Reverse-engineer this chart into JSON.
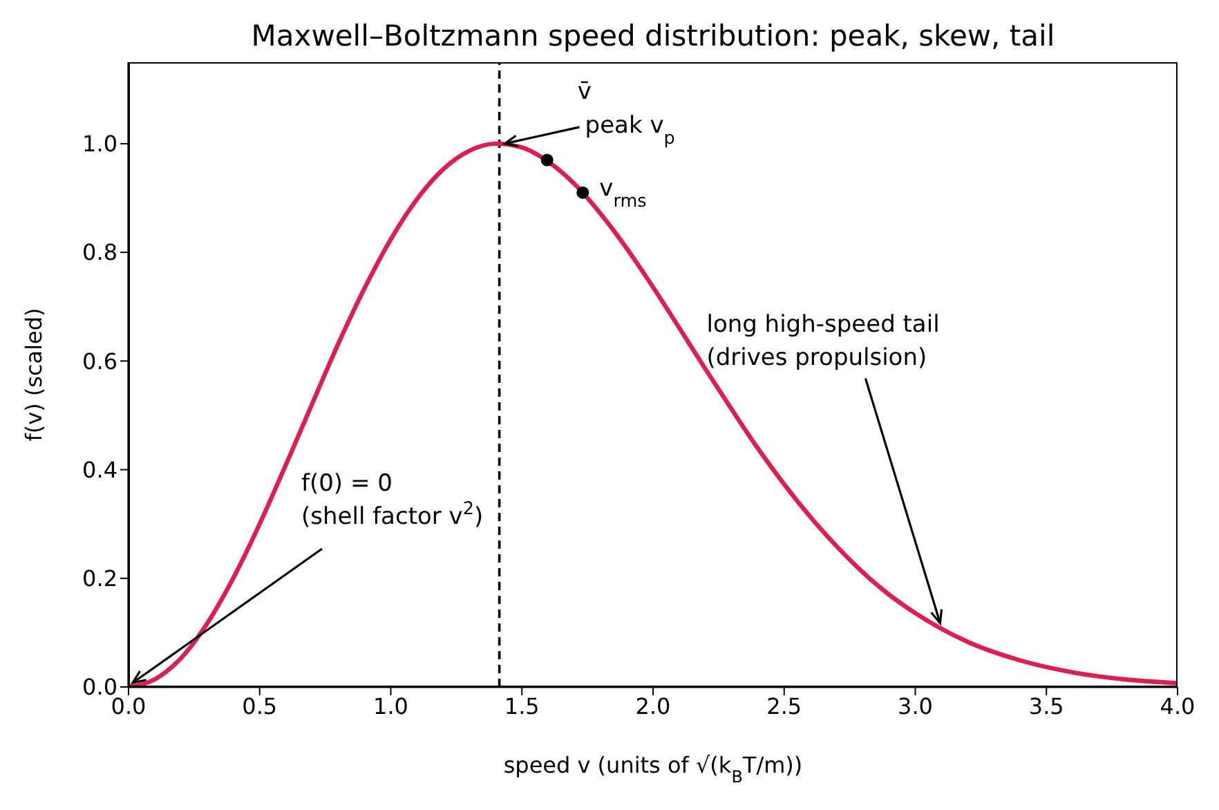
{
  "chart_data": {
    "type": "line",
    "title": "Maxwell–Boltzmann speed distribution: peak, skew, tail",
    "xlabel": "speed  v   (units of √(k$_{B}$T/m))",
    "ylabel": "f(v)  (scaled)",
    "xlim": [
      0,
      4
    ],
    "ylim": [
      0,
      1.15
    ],
    "xticks": [
      {
        "value": 0,
        "label": "0.0"
      },
      {
        "value": 0.5,
        "label": "0.5"
      },
      {
        "value": 1,
        "label": "1.0"
      },
      {
        "value": 1.5,
        "label": "1.5"
      },
      {
        "value": 2,
        "label": "2.0"
      },
      {
        "value": 2.5,
        "label": "2.5"
      },
      {
        "value": 3,
        "label": "3.0"
      },
      {
        "value": 3.5,
        "label": "3.5"
      },
      {
        "value": 4,
        "label": "4.0"
      }
    ],
    "yticks": [
      {
        "value": 0,
        "label": "0.0"
      },
      {
        "value": 0.2,
        "label": "0.2"
      },
      {
        "value": 0.4,
        "label": "0.4"
      },
      {
        "value": 0.6,
        "label": "0.6"
      },
      {
        "value": 0.8,
        "label": "0.8"
      },
      {
        "value": 1,
        "label": "1.0"
      }
    ],
    "series": [
      {
        "color": "#dc1f4e",
        "marker": "none",
        "x": [
          0,
          0.1,
          0.2,
          0.3,
          0.4,
          0.5,
          0.6,
          0.7,
          0.8,
          0.9,
          1.0,
          1.1,
          1.2,
          1.3,
          1.4,
          1.5,
          1.6,
          1.7,
          1.8,
          1.9,
          2.0,
          2.1,
          2.2,
          2.3,
          2.4,
          2.5,
          2.6,
          2.7,
          2.8,
          2.9,
          3.0,
          3.2,
          3.4,
          3.6,
          3.8,
          4.0
        ],
        "values": [
          0,
          0.014,
          0.053,
          0.117,
          0.201,
          0.3,
          0.409,
          0.521,
          0.632,
          0.734,
          0.824,
          0.898,
          0.953,
          0.987,
          1.0,
          0.993,
          0.967,
          0.926,
          0.871,
          0.807,
          0.736,
          0.661,
          0.585,
          0.511,
          0.439,
          0.373,
          0.313,
          0.259,
          0.211,
          0.17,
          0.136,
          0.083,
          0.049,
          0.027,
          0.014,
          0.007
        ]
      },
      {
        "type": "scatter",
        "color": "#000000",
        "marker": "circle",
        "x": [
          1.596,
          1.732
        ],
        "values": [
          0.97,
          0.91
        ]
      }
    ],
    "ref_lines": [
      {
        "axis": "x",
        "value": 1.414,
        "color": "#000000",
        "line_style": "dashed"
      }
    ],
    "annotations": [
      {
        "text": "v̄",
        "x": 1.596,
        "y": 0.97
      },
      {
        "text": "v$_{rms}$",
        "x": 1.732,
        "y": 0.91
      },
      {
        "text": "peak v$_{p}$",
        "x": 1.414,
        "y": 1.0
      },
      {
        "text": "f(0) = 0\n(shell factor v$^{2}$)",
        "x": 0,
        "y": 0
      },
      {
        "text": "long high-speed tail\n(drives propulsion)",
        "x": 3.1,
        "y": 0.11
      }
    ]
  }
}
